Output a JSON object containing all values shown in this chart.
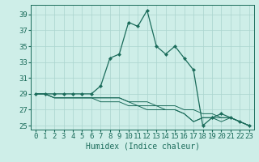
{
  "title": "",
  "xlabel": "Humidex (Indice chaleur)",
  "background_color": "#ceeee8",
  "grid_color": "#aad4ce",
  "line_color": "#1a6b5a",
  "xlim": [
    -0.5,
    23.5
  ],
  "ylim": [
    24.5,
    40.2
  ],
  "xticks": [
    0,
    1,
    2,
    3,
    4,
    5,
    6,
    7,
    8,
    9,
    10,
    11,
    12,
    13,
    14,
    15,
    16,
    17,
    18,
    19,
    20,
    21,
    22,
    23
  ],
  "yticks": [
    25,
    27,
    29,
    31,
    33,
    35,
    37,
    39
  ],
  "main_series": [
    29.0,
    29.0,
    29.0,
    29.0,
    29.0,
    29.0,
    29.0,
    30.0,
    33.5,
    34.0,
    38.0,
    37.5,
    39.5,
    35.0,
    34.0,
    35.0,
    33.5,
    32.0,
    25.0,
    26.0,
    26.5,
    26.0,
    25.5,
    25.0
  ],
  "series2": [
    29.0,
    29.0,
    28.5,
    28.5,
    28.5,
    28.5,
    28.5,
    28.5,
    28.5,
    28.5,
    28.0,
    28.0,
    28.0,
    27.5,
    27.5,
    27.5,
    27.0,
    27.0,
    26.5,
    26.5,
    26.0,
    26.0,
    25.5,
    25.0
  ],
  "series3": [
    29.0,
    29.0,
    28.5,
    28.5,
    28.5,
    28.5,
    28.5,
    28.5,
    28.5,
    28.5,
    28.0,
    27.5,
    27.5,
    27.5,
    27.0,
    27.0,
    26.5,
    25.5,
    26.0,
    26.0,
    26.0,
    26.0,
    25.5,
    25.0
  ],
  "series4": [
    29.0,
    29.0,
    28.5,
    28.5,
    28.5,
    28.5,
    28.5,
    28.0,
    28.0,
    28.0,
    27.5,
    27.5,
    27.0,
    27.0,
    27.0,
    27.0,
    26.5,
    25.5,
    26.0,
    26.0,
    25.5,
    26.0,
    25.5,
    25.0
  ],
  "font_size": 7,
  "tick_label_size": 6.5
}
